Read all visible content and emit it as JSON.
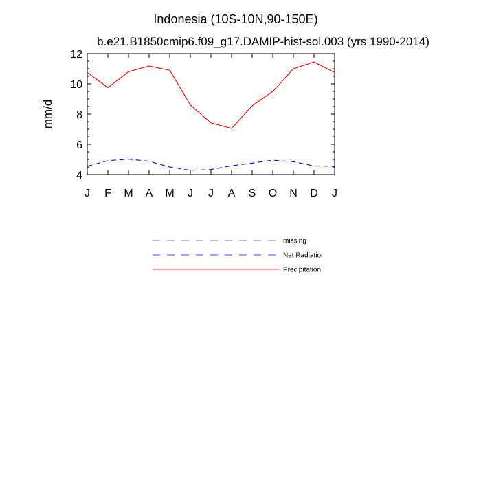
{
  "chart_data": {
    "type": "line",
    "title": "Indonesia (10S-10N,90-150E)",
    "subtitle": "b.e21.B1850cmip6.f09_g17.DAMIP-hist-sol.003 (yrs 1990-2014)",
    "xlabel": "",
    "ylabel": "mm/d",
    "categories": [
      "J",
      "F",
      "M",
      "A",
      "M",
      "J",
      "J",
      "A",
      "S",
      "O",
      "N",
      "D",
      "J"
    ],
    "yticks": [
      4,
      6,
      8,
      10,
      12
    ],
    "ylim": [
      4,
      12
    ],
    "grid": false,
    "legend_placement": "below",
    "series": [
      {
        "name": "Precipitation",
        "color": "#ff0000",
        "dash": "solid",
        "values": [
          10.75,
          9.75,
          10.8,
          11.18,
          10.9,
          8.6,
          7.42,
          7.05,
          8.55,
          9.5,
          11.0,
          11.45,
          10.75
        ]
      },
      {
        "name": "Net Radiation",
        "color": "#0000ff",
        "dash": "dashed",
        "values": [
          4.55,
          4.92,
          5.02,
          4.88,
          4.5,
          4.28,
          4.33,
          4.58,
          4.76,
          4.95,
          4.85,
          4.57,
          4.55
        ]
      }
    ],
    "legend": [
      {
        "name": "missing",
        "color": "#808080",
        "dash": "dashed"
      },
      {
        "name": "Net Radiation",
        "color": "#4040ff",
        "dash": "dashed"
      },
      {
        "name": "Precipitation",
        "color": "#ff4040",
        "dash": "solid"
      }
    ]
  }
}
